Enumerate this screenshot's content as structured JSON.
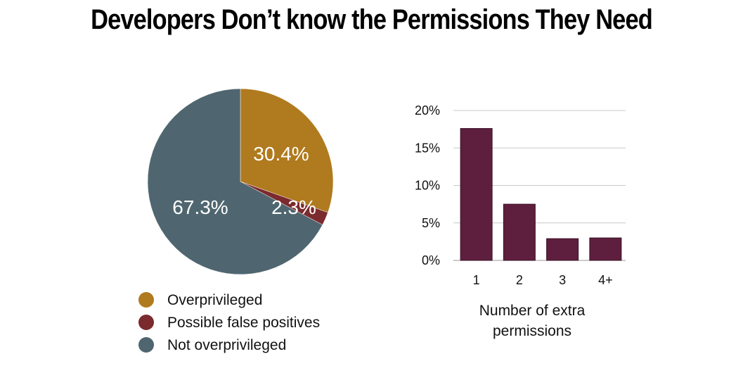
{
  "title": "Developers Don’t know the Permissions They Need",
  "chart_data": [
    {
      "type": "pie",
      "slices": [
        {
          "name": "Overprivileged",
          "value": 30.4,
          "label": "30.4%",
          "color": "#b07a1e"
        },
        {
          "name": "Possible false positives",
          "value": 2.3,
          "label": "2.3%",
          "color": "#7b2a2e"
        },
        {
          "name": "Not overprivileged",
          "value": 67.3,
          "label": "67.3%",
          "color": "#4f6670"
        }
      ],
      "legend_placement": "bottom"
    },
    {
      "type": "bar",
      "categories": [
        "1",
        "2",
        "3",
        "4+"
      ],
      "values": [
        17.6,
        7.5,
        2.9,
        3.0
      ],
      "ylim": [
        0,
        20
      ],
      "yticks": [
        "0%",
        "5%",
        "10%",
        "15%",
        "20%"
      ],
      "ytick_values": [
        0,
        5,
        10,
        15,
        20
      ],
      "xlabel_lines": [
        "Number of extra",
        "permissions"
      ],
      "ylabel": "",
      "bar_color": "#5e1f3e",
      "grid": true
    }
  ]
}
